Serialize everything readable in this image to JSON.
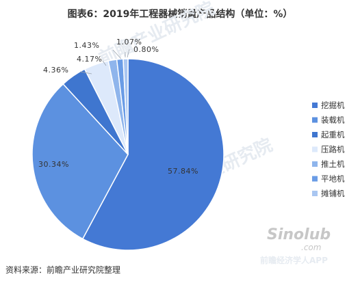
{
  "title": "图表6：2019年工程器械销量产品结构（单位：%）",
  "source": "资料来源：前瞻产业研究院整理",
  "watermark": {
    "brand": "前瞻产业研究院",
    "site_logo": "Sinolub",
    "site_domain": ".com",
    "app": "前瞻经济学人APP"
  },
  "chart_data": {
    "type": "pie",
    "title": "图表6：2019年工程器械销量产品结构（单位：%）",
    "unit": "%",
    "legend_position": "right",
    "categories": [
      "挖掘机",
      "装载机",
      "起重机",
      "压路机",
      "推土机",
      "平地机",
      "摊铺机"
    ],
    "values": [
      57.84,
      30.34,
      4.36,
      4.17,
      1.43,
      1.07,
      0.8
    ],
    "labels": [
      "57.84%",
      "30.34%",
      "4.36%",
      "4.17%",
      "1.43%",
      "1.07%",
      "0.80%"
    ],
    "colors": [
      "#4479d4",
      "#5c91e0",
      "#3f76cf",
      "#dde9fb",
      "#8fb5ec",
      "#6a9ce6",
      "#a9c6f1"
    ]
  }
}
